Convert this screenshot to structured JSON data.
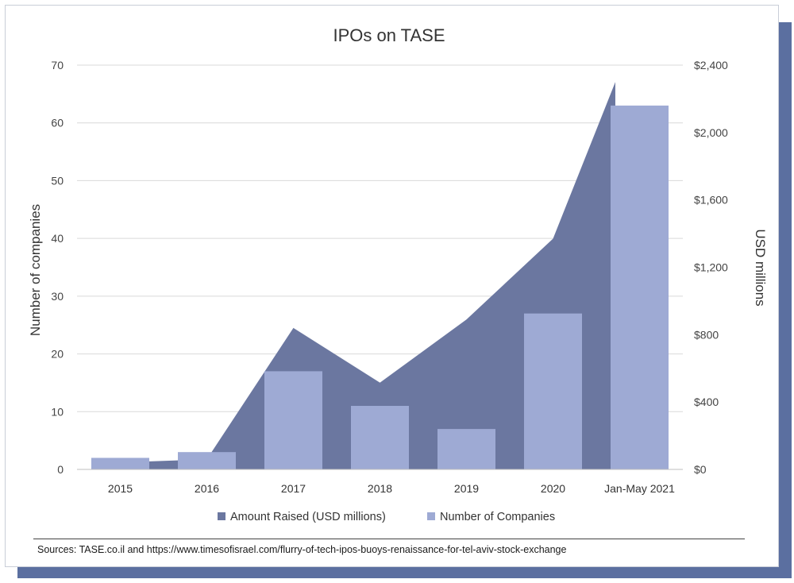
{
  "chart_data": {
    "type": "bar",
    "title": "IPOs on TASE",
    "categories": [
      "2015",
      "2016",
      "2017",
      "2018",
      "2019",
      "2020",
      "Jan-May 2021"
    ],
    "ylabel": "Number of companies",
    "y2label": "USD millions",
    "ylim": [
      0,
      70
    ],
    "y2lim": [
      0,
      2400
    ],
    "yticks": [
      "0",
      "10",
      "20",
      "30",
      "40",
      "50",
      "60",
      "70"
    ],
    "y2ticks": [
      "$0",
      "$400",
      "$800",
      "$1,200",
      "$1,600",
      "$2,000",
      "$2,400"
    ],
    "series": [
      {
        "name": "Amount Raised (USD millions)",
        "kind": "area",
        "axis": "right",
        "color": "#6b77a0",
        "values": [
          45,
          60,
          840,
          515,
          890,
          1370,
          2300
        ]
      },
      {
        "name": "Number of Companies",
        "kind": "bar",
        "axis": "left",
        "color": "#9eaad4",
        "values": [
          2,
          3,
          17,
          11,
          7,
          27,
          63
        ]
      }
    ],
    "legend": [
      "Amount Raised (USD millions)",
      "Number of Companies"
    ],
    "legend_position": "bottom",
    "grid": true
  },
  "sources": "Sources: TASE.co.il and https://www.timesofisrael.com/flurry-of-tech-ipos-buoys-renaissance-for-tel-aviv-stock-exchange"
}
